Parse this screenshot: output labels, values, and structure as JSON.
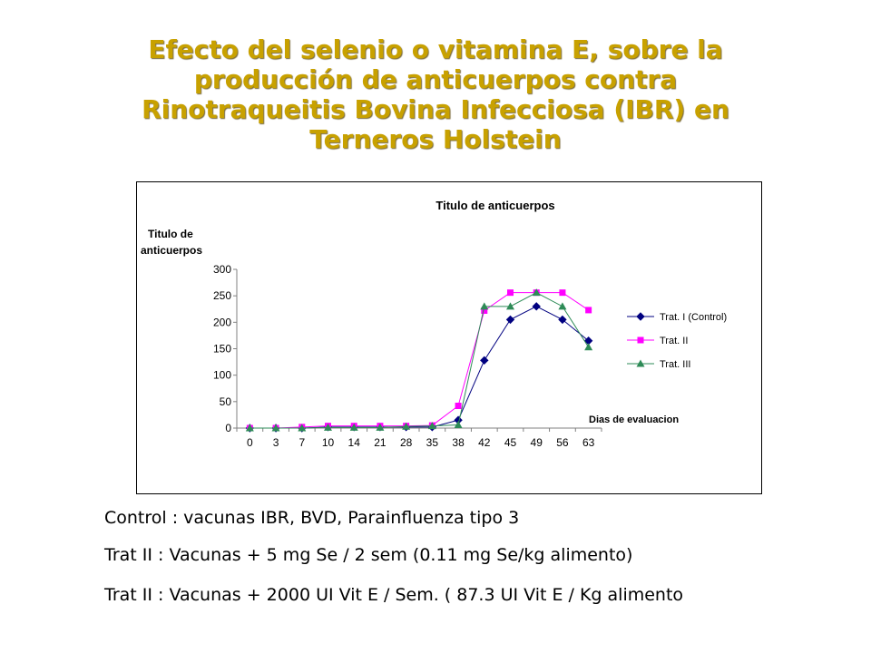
{
  "slide": {
    "title_lines": [
      "Efecto del selenio o vitamina E, sobre la",
      "producción de anticuerpos contra",
      "Rinotraqueitis Bovina Infecciosa (IBR) en",
      "Terneros Holstein"
    ],
    "notes": [
      "Control : vacunas IBR, BVD, Parainfluenza tipo 3",
      "Trat II : Vacunas + 5 mg  Se / 2 sem (0.11 mg Se/kg alimento)",
      "Trat II : Vacunas + 2000 UI Vit E / Sem. ( 87.3 UI Vit E / Kg alimento"
    ],
    "title_color": "#c8a100"
  },
  "chart_data": {
    "type": "line",
    "title": "Titulo  de anticuerpos",
    "ylabel": [
      "Titulo de",
      "anticuerpos"
    ],
    "xlabel": "Dias de evaluacion",
    "categories": [
      "0",
      "3",
      "7",
      "10",
      "14",
      "21",
      "28",
      "35",
      "38",
      "42",
      "45",
      "49",
      "56",
      "63"
    ],
    "ylim": [
      0,
      300
    ],
    "yticks": [
      0,
      50,
      100,
      150,
      200,
      250,
      300
    ],
    "grid": false,
    "legend_position": "right",
    "series": [
      {
        "name": "Trat. I (Control)",
        "marker": "diamond",
        "color": "#000080",
        "values": [
          0,
          0,
          0,
          2,
          2,
          2,
          2,
          2,
          15,
          128,
          205,
          230,
          205,
          165
        ]
      },
      {
        "name": "Trat. II",
        "marker": "square",
        "color": "#ff00ff",
        "values": [
          0,
          0,
          2,
          4,
          4,
          4,
          4,
          5,
          42,
          222,
          256,
          256,
          256,
          223
        ]
      },
      {
        "name": "Trat. III",
        "marker": "triangle",
        "color": "#2e8b57",
        "values": [
          0,
          0,
          0,
          1,
          1,
          1,
          3,
          4,
          6,
          230,
          230,
          256,
          230,
          153
        ]
      }
    ]
  }
}
